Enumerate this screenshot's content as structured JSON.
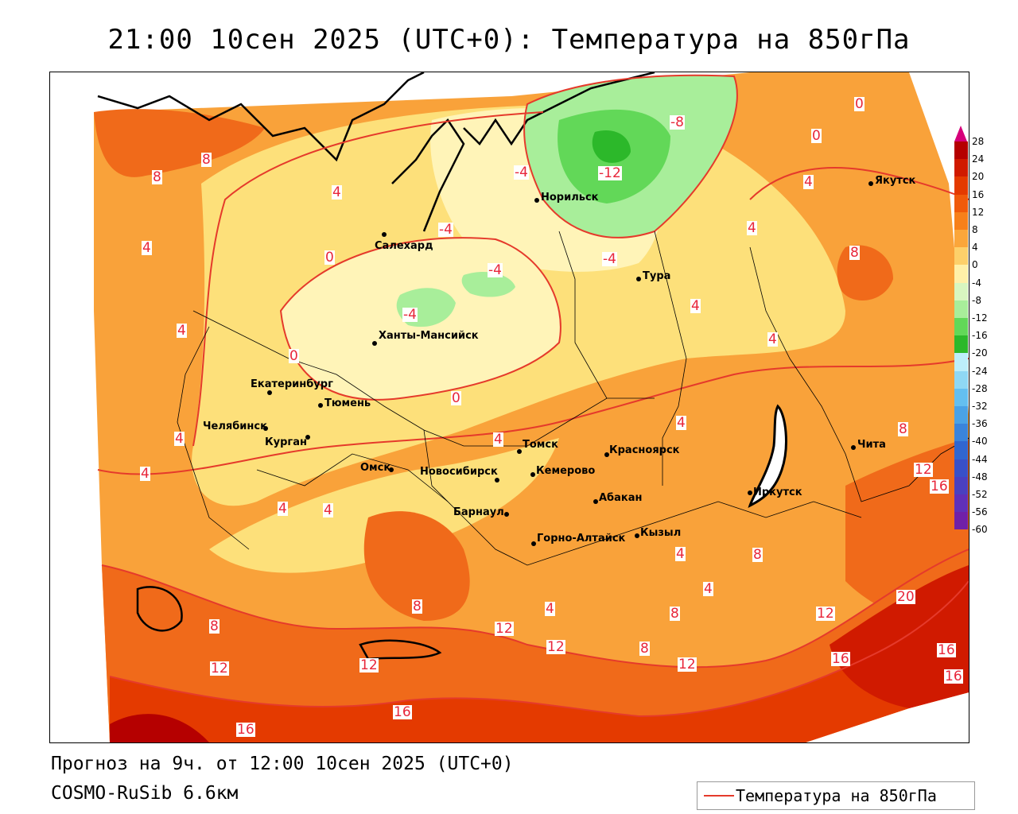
{
  "title": "21:00 10сен 2025 (UTC+0): Температура на 850гПа",
  "forecast_line": "Прогноз на 9ч. от 12:00 10сен 2025 (UTC+0)",
  "model_line": "COSMO-RuSib 6.6км",
  "legend": {
    "label": "Температура на 850гПа",
    "color": "#e53a2b"
  },
  "colorbar": {
    "labels": [
      "28",
      "24",
      "20",
      "16",
      "12",
      "8",
      "4",
      "0",
      "-4",
      "-8",
      "-12",
      "-16",
      "-20",
      "-24",
      "-28",
      "-32",
      "-36",
      "-40",
      "-44",
      "-48",
      "-52",
      "-56",
      "-60"
    ],
    "colors": [
      "#b50000",
      "#d01a00",
      "#e43a00",
      "#f05a0a",
      "#f7801a",
      "#fba63a",
      "#fdd06a",
      "#fff0a8",
      "#d8f6c0",
      "#a8ee9a",
      "#62d858",
      "#2cb82a",
      "#bdeefa",
      "#8fd8f4",
      "#64bff0",
      "#4aa2e6",
      "#3a84dc",
      "#3066d0",
      "#3850c8",
      "#4a40c0",
      "#6030b8",
      "#7020a8"
    ]
  },
  "cities": [
    {
      "name": "Якутск"
    },
    {
      "name": "Норильск"
    },
    {
      "name": "Салехард"
    },
    {
      "name": "Тура"
    },
    {
      "name": "Ханты-Мансийск"
    },
    {
      "name": "Екатеринбург"
    },
    {
      "name": "Тюмень"
    },
    {
      "name": "Челябинск"
    },
    {
      "name": "Курган"
    },
    {
      "name": "Омск"
    },
    {
      "name": "Томск"
    },
    {
      "name": "Красноярск"
    },
    {
      "name": "Новосибирск"
    },
    {
      "name": "Кемерово"
    },
    {
      "name": "Абакан"
    },
    {
      "name": "Барнаул"
    },
    {
      "name": "Горно-Алтайск"
    },
    {
      "name": "Кызыл"
    },
    {
      "name": "Иркутск"
    },
    {
      "name": "Чита"
    }
  ],
  "isoline_labels": [
    "8",
    "8",
    "4",
    "0",
    "-4",
    "-8",
    "0",
    "4",
    "-4",
    "-12",
    "-4",
    "0",
    "8",
    "4",
    "-4",
    "-4",
    "0",
    "4",
    "4",
    "4",
    "0",
    "4",
    "4",
    "4",
    "4",
    "8",
    "12",
    "16",
    "4",
    "4",
    "8",
    "4",
    "8",
    "8",
    "12",
    "12",
    "12",
    "12",
    "12",
    "16",
    "16",
    "16",
    "20",
    "16",
    "16",
    "12",
    "8",
    "4",
    "4",
    "4",
    "8"
  ]
}
